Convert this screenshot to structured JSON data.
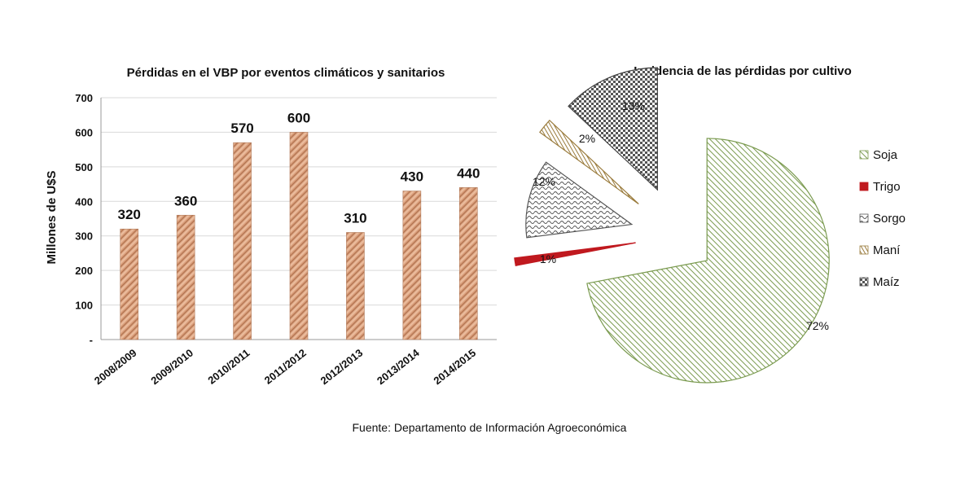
{
  "chart_data": [
    {
      "type": "bar",
      "title": "Pérdidas en el VBP por eventos climáticos y sanitarios",
      "ylabel": "Millones de U$S",
      "xlabel": "",
      "categories": [
        "2008/2009",
        "2009/2010",
        "2010/2011",
        "2011/2012",
        "2012/2013",
        "2013/2014",
        "2014/2015"
      ],
      "values": [
        320,
        360,
        570,
        600,
        310,
        430,
        440
      ],
      "data_labels": [
        "320",
        "360",
        "570",
        "600",
        "310",
        "430",
        "440"
      ],
      "ylim": [
        0,
        700
      ],
      "yticks": [
        "-",
        "100",
        "200",
        "300",
        "400",
        "500",
        "600",
        "700"
      ],
      "grid": true,
      "bar_color": "#d9a07e"
    },
    {
      "type": "pie",
      "title": "Incidencia de las pérdidas por cultivo",
      "exploded": true,
      "legend_position": "right",
      "slices": [
        {
          "label": "Soja",
          "value": 72,
          "display": "72%",
          "color": "#7a9a4f"
        },
        {
          "label": "Trigo",
          "value": 1,
          "display": "1%",
          "color": "#c0191f"
        },
        {
          "label": "Sorgo",
          "value": 12,
          "display": "12%",
          "color": "#555555"
        },
        {
          "label": "Maní",
          "value": 2,
          "display": "2%",
          "color": "#9a7b3c"
        },
        {
          "label": "Maíz",
          "value": 13,
          "display": "13%",
          "color": "#444444"
        }
      ]
    }
  ],
  "source": "Fuente: Departamento de Información Agroeconómica"
}
